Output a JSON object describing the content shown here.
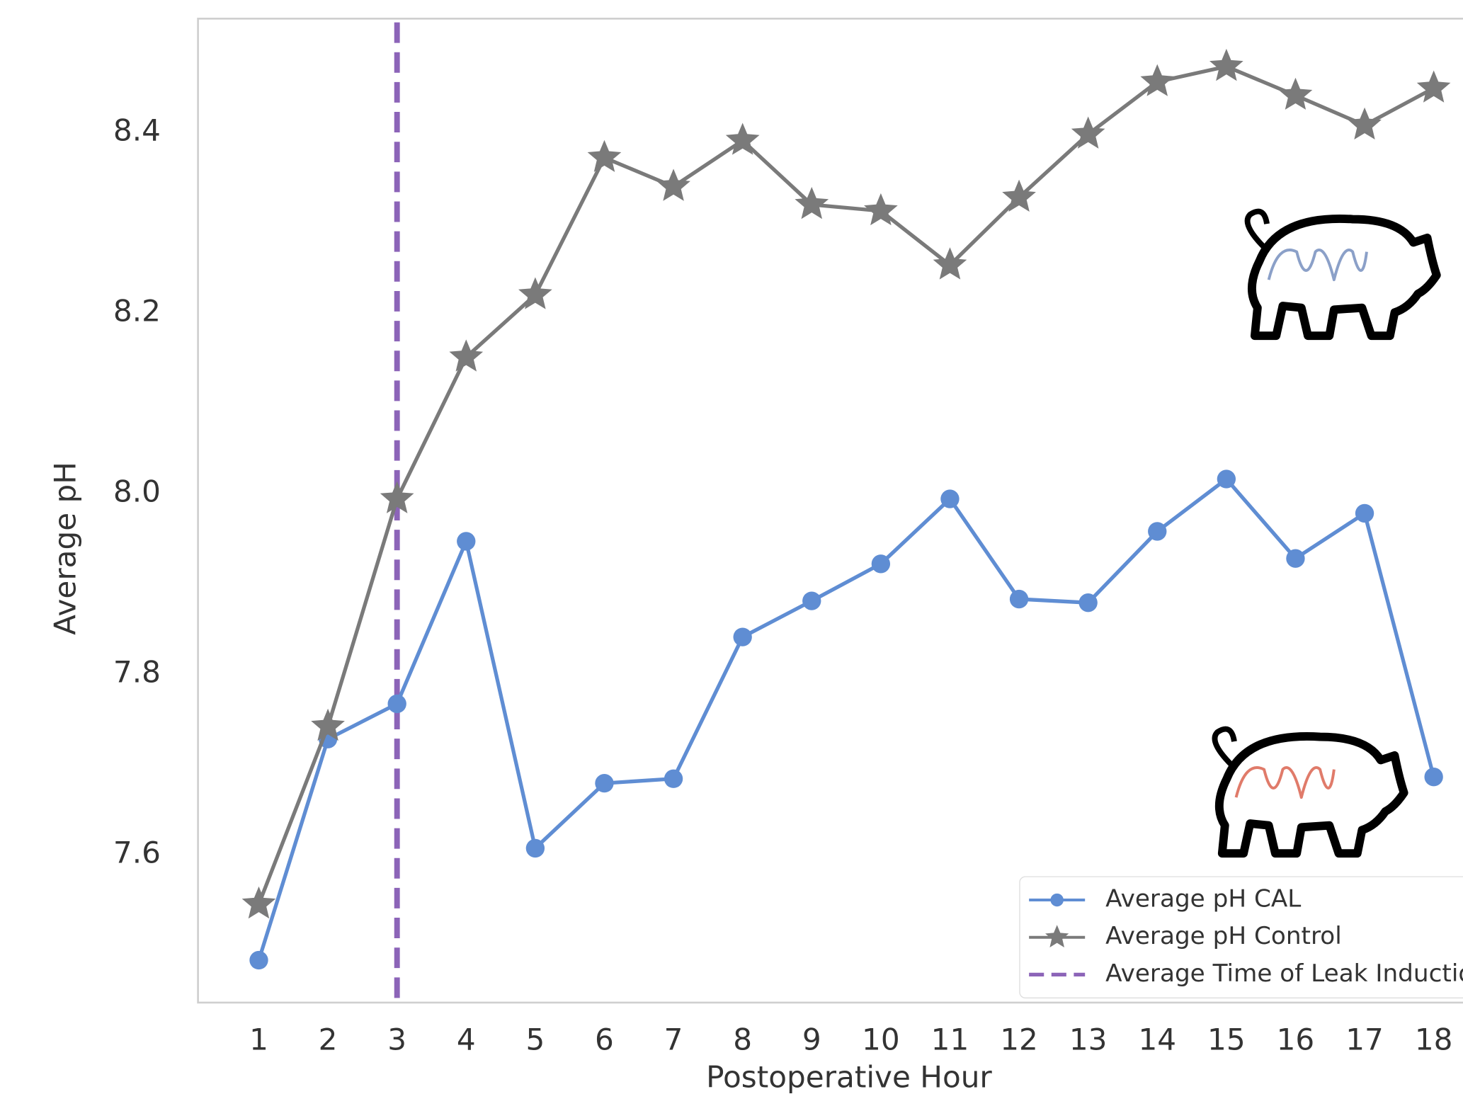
{
  "chart_data": {
    "type": "line",
    "xlabel": "Postoperative Hour",
    "ylabel": "Average pH",
    "x": [
      1,
      2,
      3,
      4,
      5,
      6,
      7,
      8,
      9,
      10,
      11,
      12,
      13,
      14,
      15,
      16,
      17,
      18
    ],
    "xlim": [
      0.12,
      18.42
    ],
    "xticks": [
      1,
      2,
      3,
      4,
      5,
      6,
      7,
      8,
      9,
      10,
      11,
      12,
      13,
      14,
      15,
      16,
      17,
      18
    ],
    "ylim": [
      7.436,
      8.526
    ],
    "yticks": [
      7.6,
      7.8,
      {
        "value": 8.0,
        "label": "8.0"
      },
      8.2,
      8.4
    ],
    "grid": false,
    "legend": "lower right",
    "series": [
      {
        "name": "Average pH CAL",
        "color": "#5f8dd3",
        "marker": "circle",
        "values": [
          7.483,
          7.728,
          7.767,
          7.947,
          7.607,
          7.679,
          7.684,
          7.841,
          7.881,
          7.922,
          7.994,
          7.883,
          7.879,
          7.958,
          8.016,
          7.928,
          7.978,
          7.686
        ]
      },
      {
        "name": "Average pH Control",
        "color": "#7a7a7a",
        "marker": "star",
        "values": [
          7.545,
          7.742,
          7.994,
          8.151,
          8.22,
          8.372,
          8.34,
          8.391,
          8.32,
          8.313,
          8.253,
          8.328,
          8.398,
          8.456,
          8.473,
          8.441,
          8.408,
          8.449
        ]
      }
    ],
    "vlines": [
      {
        "name": "Average Time of Leak Induction",
        "x": 3,
        "color": "#8c64b8"
      }
    ]
  }
}
